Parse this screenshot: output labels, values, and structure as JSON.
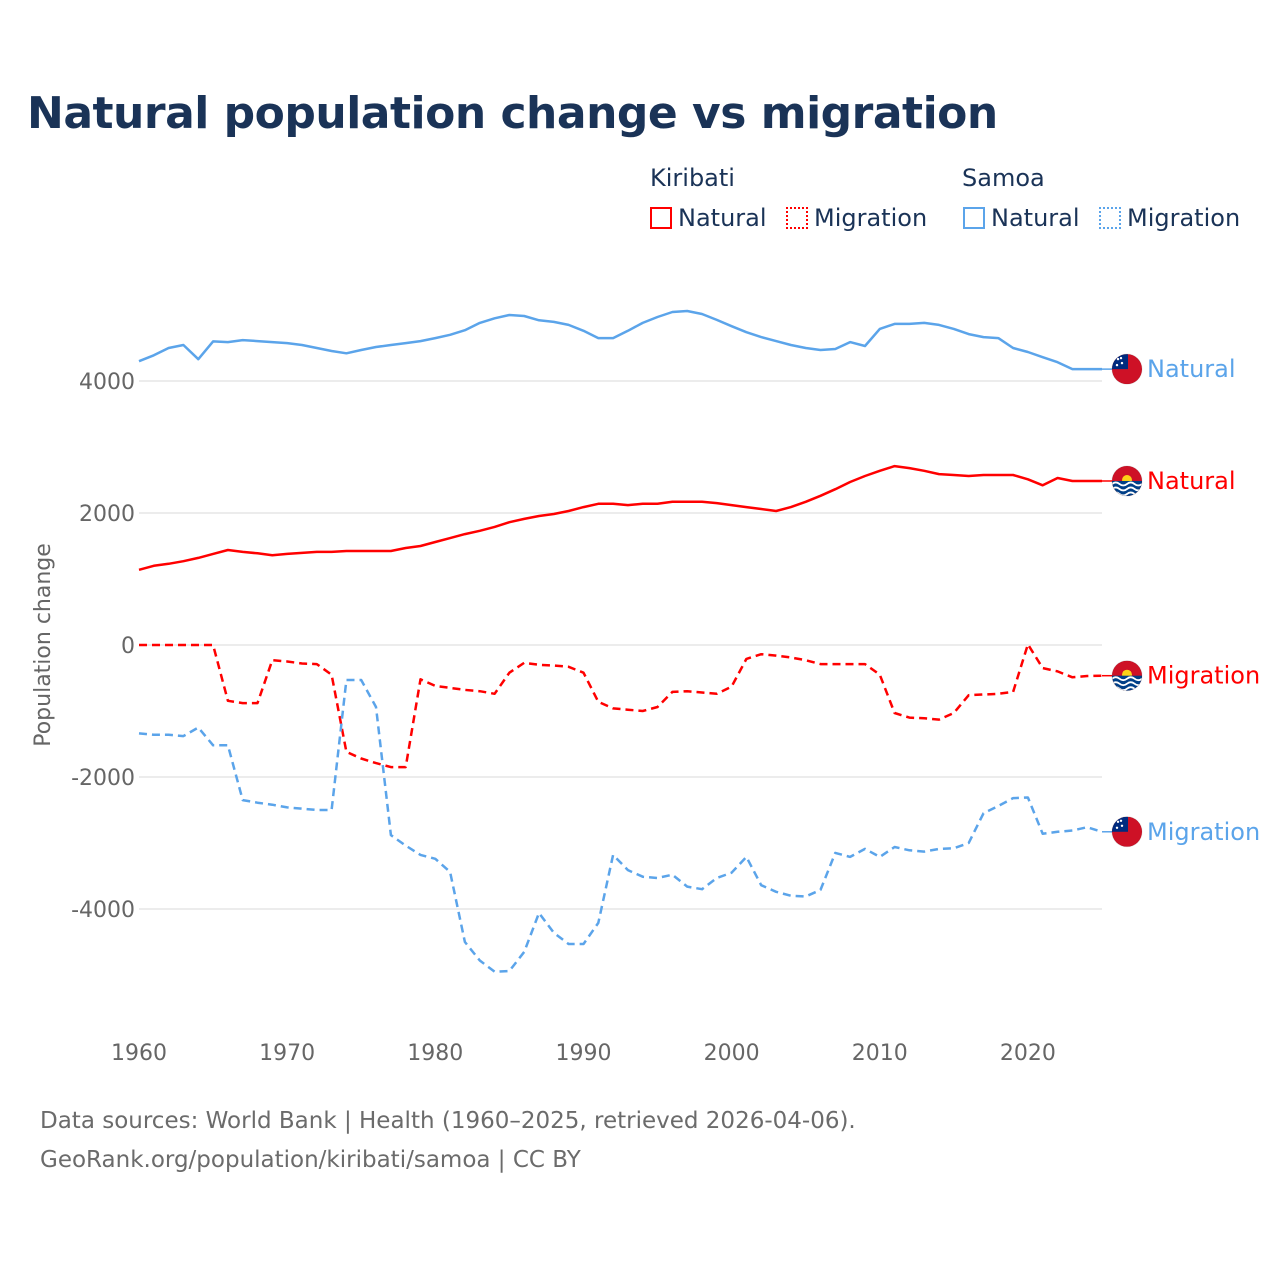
{
  "title": "Natural population change vs migration",
  "legend": {
    "groups": [
      {
        "name": "Kiribati",
        "items": [
          {
            "label": "Natural",
            "style": "solid"
          },
          {
            "label": "Migration",
            "style": "dotted"
          }
        ]
      },
      {
        "name": "Samoa",
        "items": [
          {
            "label": "Natural",
            "style": "solid"
          },
          {
            "label": "Migration",
            "style": "dotted"
          }
        ]
      }
    ]
  },
  "footer": {
    "line1": "Data sources: World Bank | Health (1960–2025, retrieved 2026-04-06).",
    "line2": "GeoRank.org/population/kiribati/samoa | CC BY"
  },
  "chart_data": {
    "type": "line",
    "title": "Natural population change vs migration",
    "xlabel": "",
    "ylabel": "Population change",
    "xlim": [
      1960,
      2025
    ],
    "ylim": [
      -5500,
      5300
    ],
    "x_ticks": [
      1960,
      1970,
      1980,
      1990,
      2000,
      2010,
      2020
    ],
    "y_ticks": [
      4000,
      2000,
      0,
      -2000,
      -4000
    ],
    "grid": true,
    "legend_placement": "top-right",
    "x_start": 1960,
    "series": [
      {
        "name": "Samoa Natural",
        "country": "Samoa",
        "end_label": "Natural",
        "color": "#5ba4ea",
        "dash": false,
        "values": [
          4300,
          4390,
          4500,
          4545,
          4330,
          4600,
          4590,
          4620,
          4605,
          4590,
          4575,
          4545,
          4500,
          4455,
          4420,
          4470,
          4515,
          4545,
          4575,
          4605,
          4650,
          4700,
          4770,
          4880,
          4950,
          5000,
          4985,
          4920,
          4895,
          4850,
          4760,
          4650,
          4650,
          4760,
          4880,
          4970,
          5045,
          5060,
          5015,
          4925,
          4830,
          4740,
          4665,
          4605,
          4545,
          4500,
          4470,
          4485,
          4590,
          4530,
          4790,
          4865,
          4865,
          4880,
          4850,
          4790,
          4710,
          4665,
          4650,
          4500,
          4440,
          4360,
          4285,
          4180,
          4180,
          4180
        ]
      },
      {
        "name": "Kiribati Natural",
        "country": "Kiribati",
        "end_label": "Natural",
        "color": "#ff0000",
        "dash": false,
        "values": [
          1140,
          1200,
          1230,
          1270,
          1320,
          1380,
          1440,
          1410,
          1390,
          1360,
          1380,
          1395,
          1410,
          1410,
          1425,
          1425,
          1425,
          1425,
          1470,
          1500,
          1560,
          1620,
          1680,
          1730,
          1790,
          1860,
          1910,
          1955,
          1985,
          2030,
          2090,
          2140,
          2140,
          2120,
          2140,
          2140,
          2170,
          2170,
          2170,
          2150,
          2120,
          2090,
          2060,
          2030,
          2090,
          2170,
          2260,
          2360,
          2470,
          2560,
          2640,
          2710,
          2680,
          2640,
          2590,
          2575,
          2560,
          2575,
          2575,
          2575,
          2510,
          2420,
          2530,
          2485,
          2485,
          2485
        ]
      },
      {
        "name": "Kiribati Migration",
        "country": "Kiribati",
        "end_label": "Migration",
        "color": "#ff0000",
        "dash": true,
        "values": [
          0,
          0,
          0,
          0,
          0,
          0,
          -845,
          -880,
          -880,
          -230,
          -250,
          -280,
          -290,
          -450,
          -1620,
          -1720,
          -1790,
          -1850,
          -1850,
          -520,
          -620,
          -650,
          -680,
          -700,
          -740,
          -420,
          -270,
          -300,
          -310,
          -330,
          -420,
          -860,
          -960,
          -980,
          -1000,
          -940,
          -710,
          -700,
          -720,
          -740,
          -630,
          -210,
          -140,
          -160,
          -190,
          -230,
          -290,
          -290,
          -290,
          -290,
          -450,
          -1030,
          -1100,
          -1110,
          -1130,
          -1030,
          -760,
          -750,
          -740,
          -710,
          10,
          -350,
          -400,
          -490,
          -470,
          -465
        ]
      },
      {
        "name": "Samoa Migration",
        "country": "Samoa",
        "end_label": "Migration",
        "color": "#5ba4ea",
        "dash": true,
        "values": [
          -1340,
          -1360,
          -1360,
          -1380,
          -1250,
          -1520,
          -1520,
          -2350,
          -2390,
          -2420,
          -2460,
          -2480,
          -2500,
          -2500,
          -530,
          -530,
          -940,
          -2880,
          -3040,
          -3180,
          -3240,
          -3440,
          -4500,
          -4780,
          -4950,
          -4940,
          -4650,
          -4060,
          -4360,
          -4530,
          -4530,
          -4210,
          -3180,
          -3410,
          -3510,
          -3530,
          -3480,
          -3660,
          -3700,
          -3530,
          -3450,
          -3210,
          -3640,
          -3740,
          -3800,
          -3810,
          -3710,
          -3150,
          -3210,
          -3090,
          -3210,
          -3060,
          -3110,
          -3130,
          -3090,
          -3080,
          -3000,
          -2550,
          -2440,
          -2320,
          -2310,
          -2860,
          -2830,
          -2810,
          -2760,
          -2830
        ]
      }
    ]
  }
}
